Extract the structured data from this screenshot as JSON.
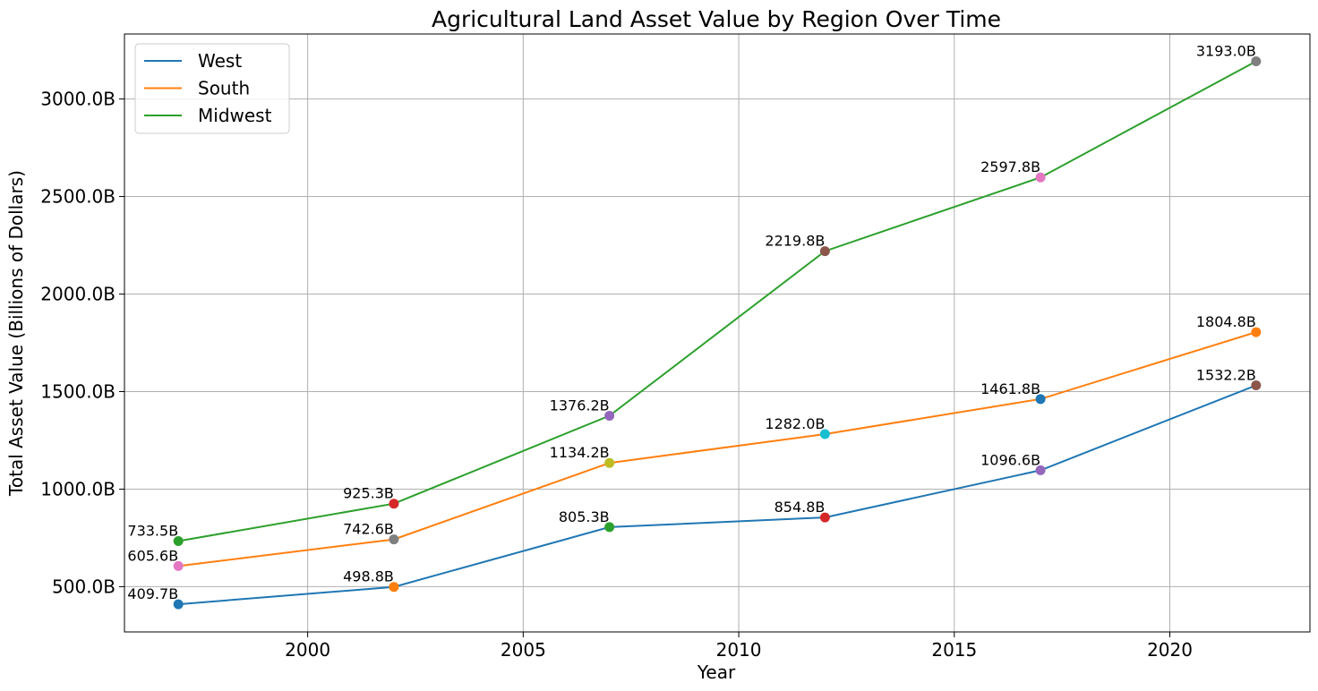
{
  "chart_data": {
    "type": "line",
    "title": "Agricultural Land Asset Value by Region Over Time",
    "xlabel": "Year",
    "ylabel": "Total Asset Value (Billions of Dollars)",
    "x": [
      1997,
      2002,
      2007,
      2012,
      2017,
      2022
    ],
    "xlim": [
      1995.75,
      2023.25
    ],
    "ylim": [
      268,
      3333
    ],
    "xticks": [
      2000,
      2005,
      2010,
      2015,
      2020
    ],
    "xtick_labels": [
      "2000",
      "2005",
      "2010",
      "2015",
      "2020"
    ],
    "yticks": [
      500,
      1000,
      1500,
      2000,
      2500,
      3000
    ],
    "ytick_labels": [
      "500.0B",
      "1000.0B",
      "1500.0B",
      "2000.0B",
      "2500.0B",
      "3000.0B"
    ],
    "grid": true,
    "legend_position": "top-left",
    "series": [
      {
        "name": "West",
        "color": "#1f77b4",
        "values": [
          409.7,
          498.8,
          805.3,
          854.8,
          1096.6,
          1532.2
        ],
        "labels": [
          "409.7B",
          "498.8B",
          "805.3B",
          "854.8B",
          "1096.6B",
          "1532.2B"
        ],
        "marker_colors": [
          "#1f77b4",
          "#ff7f0e",
          "#2ca02c",
          "#d62728",
          "#9467bd",
          "#8c564b"
        ]
      },
      {
        "name": "South",
        "color": "#ff7f0e",
        "values": [
          605.6,
          742.6,
          1134.2,
          1282.0,
          1461.8,
          1804.8
        ],
        "labels": [
          "605.6B",
          "742.6B",
          "1134.2B",
          "1282.0B",
          "1461.8B",
          "1804.8B"
        ],
        "marker_colors": [
          "#e377c2",
          "#7f7f7f",
          "#bcbd22",
          "#17becf",
          "#1f77b4",
          "#ff7f0e"
        ]
      },
      {
        "name": "Midwest",
        "color": "#2ca02c",
        "values": [
          733.5,
          925.3,
          1376.2,
          2219.8,
          2597.8,
          3193.0
        ],
        "labels": [
          "733.5B",
          "925.3B",
          "1376.2B",
          "2219.8B",
          "2597.8B",
          "3193.0B"
        ],
        "marker_colors": [
          "#2ca02c",
          "#d62728",
          "#9467bd",
          "#8c564b",
          "#e377c2",
          "#7f7f7f"
        ]
      }
    ]
  }
}
